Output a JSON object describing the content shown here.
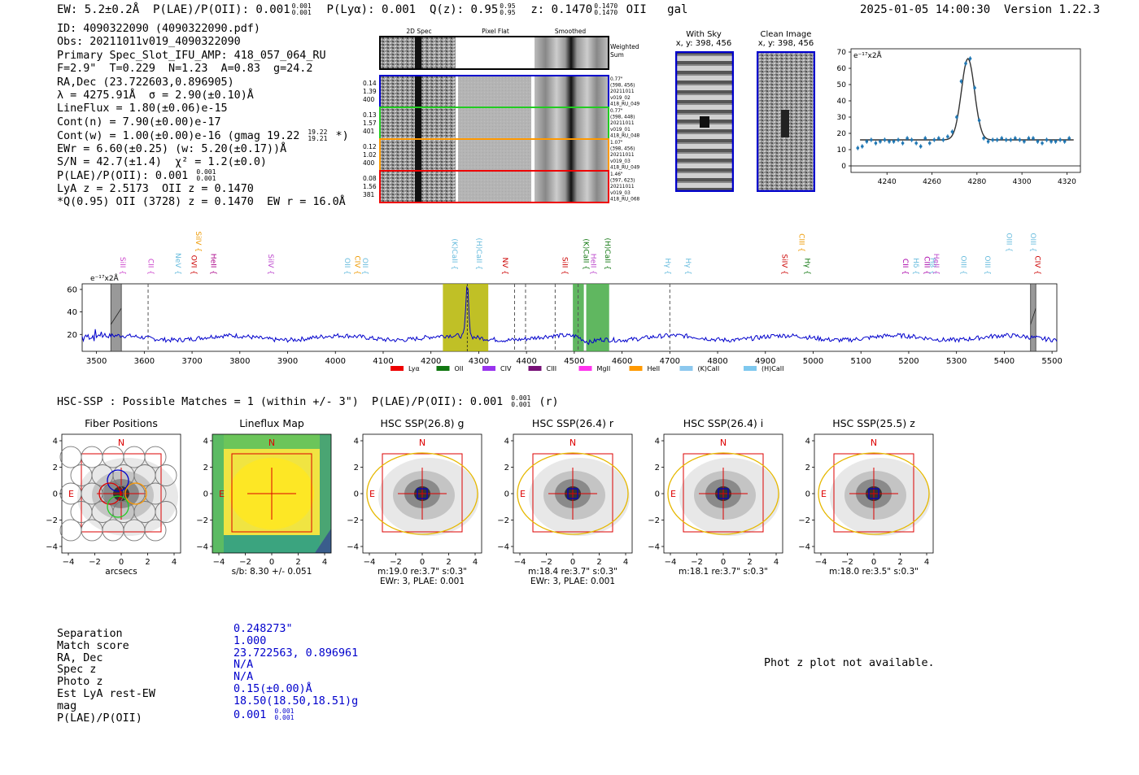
{
  "header": {
    "left": "EW: 5.2±0.2Å  P(LAE)/P(OII): 0.001",
    "plae_sup": "0.001",
    "plae_sub": "0.001",
    "plya": "  P(Lyα): 0.001  Q(z): 0.95",
    "qz_sup": "0.95",
    "qz_sub": "0.95",
    "z": "  z: 0.1470",
    "z_sup": "0.1470",
    "z_sub": "0.1470",
    "tail": " OII   gal",
    "timestamp": "2025-01-05 14:00:30",
    "version": "Version 1.22.3"
  },
  "info_lines": [
    "ID: 4090322090 (4090322090.pdf)",
    "Obs: 20211011v019_4090322090",
    "Primary Spec_Slot_IFU_AMP: 418_057_064_RU",
    "F=2.9\"  T=0.229  N=1.23  A=0.83  g=24.2",
    "RA,Dec (23.722603,0.896905)",
    "λ = 4275.91Å  σ = 2.90(±0.10)Å",
    "LineFlux = 1.80(±0.06)e-15",
    "Cont(n) = 7.90(±0.00)e-17",
    "Cont(w) = 1.00(±0.00)e-16 (gmag 19.22",
    "EWr = 6.60(±0.25) (w: 5.20(±0.17))Å",
    "S/N = 42.7(±1.4)  χ² = 1.2(±0.0)",
    "P(LAE)/P(OII): 0.001",
    "LyA z = 2.5173  OII z = 0.1470",
    "*Q(0.95) OII (3728) z = 0.1470  EW r = 16.0Å"
  ],
  "info_fracs": {
    "gmag_sup": "19.22",
    "gmag_sub": "19.21",
    "gmag_tail": " *)",
    "plae_sup": "0.001",
    "plae_sub": "0.001"
  },
  "cutouts": {
    "col_titles": [
      "2D Spec",
      "Pixel Flat",
      "Smoothed"
    ],
    "weighted_sum": "Weighted\nSum",
    "rows": [
      {
        "left": [
          "0.14",
          "1.39",
          "400"
        ],
        "right": [
          "0.77\"",
          "(398, 456)",
          "20211011",
          "v019_02",
          "418_RU_049"
        ],
        "color": "#0000cc"
      },
      {
        "left": [
          "0.13",
          "1.57",
          "401"
        ],
        "right": [
          "0.77\"",
          "(398, 448)",
          "20211011",
          "v019_01",
          "418_RU_048"
        ],
        "color": "#22cc22"
      },
      {
        "left": [
          "0.12",
          "1.02",
          "400"
        ],
        "right": [
          "1.07\"",
          "(398, 456)",
          "20211011",
          "v019_03",
          "418_RU_049"
        ],
        "color": "#ff9900"
      },
      {
        "left": [
          "0.08",
          "1.56",
          "381"
        ],
        "right": [
          "1.46\"",
          "(397, 623)",
          "20211011",
          "v019_03",
          "418_RU_068"
        ],
        "color": "#ee0000"
      }
    ]
  },
  "sky_panels": {
    "with_sky_title": "With Sky",
    "with_sky_xy": "x, y: 398, 456",
    "clean_title": "Clean Image",
    "clean_xy": "x, y: 398, 456"
  },
  "zoom_chart": {
    "unit_label": "e⁻¹⁷x2Å",
    "xticks": [
      "4240",
      "4260",
      "4280",
      "4300",
      "4320"
    ],
    "yticks": [
      "0",
      "10",
      "20",
      "30",
      "40",
      "50",
      "60",
      "70"
    ]
  },
  "chart_data": [
    {
      "type": "scatter",
      "title": "line fit zoom",
      "xlim": [
        4224,
        4326
      ],
      "ylim": [
        -4,
        72
      ],
      "x": [
        4227,
        4229,
        4231,
        4233,
        4235,
        4237,
        4239,
        4241,
        4243,
        4245,
        4247,
        4249,
        4251,
        4253,
        4255,
        4257,
        4259,
        4261,
        4263,
        4265,
        4267,
        4269,
        4271,
        4273,
        4275,
        4277,
        4279,
        4281,
        4283,
        4285,
        4287,
        4289,
        4291,
        4293,
        4295,
        4297,
        4299,
        4301,
        4303,
        4305,
        4307,
        4309,
        4311,
        4313,
        4315,
        4317,
        4319,
        4321
      ],
      "y": [
        11,
        12,
        15,
        16,
        14,
        15,
        16,
        15,
        15,
        16,
        14,
        17,
        16,
        14,
        12,
        17,
        14,
        16,
        17,
        16,
        18,
        21,
        30,
        52,
        63,
        66,
        48,
        28,
        17,
        15,
        16,
        16,
        17,
        16,
        16,
        17,
        16,
        15,
        17,
        17,
        15,
        14,
        16,
        15,
        15,
        16,
        15,
        17
      ],
      "fit_peak": 66,
      "fit_center": 4276,
      "fit_sigma": 2.9,
      "fit_baseline": 16
    },
    {
      "type": "line",
      "title": "full spectrum",
      "unit_label": "e⁻¹⁷x2Å",
      "xlim": [
        3470,
        5510
      ],
      "ylim": [
        5,
        65
      ],
      "xticks": [
        "3500",
        "3600",
        "3700",
        "3800",
        "3900",
        "4000",
        "4100",
        "4200",
        "4300",
        "4400",
        "4500",
        "4600",
        "4700",
        "4800",
        "4900",
        "5000",
        "5100",
        "5200",
        "5300",
        "5400",
        "5500"
      ],
      "yticks": [
        "20",
        "40",
        "60"
      ],
      "emission_line_peak": {
        "center": 4276,
        "height": 63
      },
      "line_markers": [
        {
          "label": "SiII",
          "x": 3545,
          "color": "#cc44cc",
          "tier": 0
        },
        {
          "label": "CII",
          "x": 3604,
          "color": "#cc44cc",
          "tier": 0
        },
        {
          "label": "NeV",
          "x": 3661,
          "color": "#66bbdd",
          "tier": 0
        },
        {
          "label": "OVI",
          "x": 3694,
          "color": "#cc0000",
          "tier": 0
        },
        {
          "label": "SiIV",
          "x": 3703,
          "color": "#ee9900",
          "tier": 2
        },
        {
          "label": "HeII",
          "x": 3735,
          "color": "#aa0088",
          "tier": 0
        },
        {
          "label": "SiIV",
          "x": 3855,
          "color": "#bb44cc",
          "tier": 0
        },
        {
          "label": "OII",
          "x": 4015,
          "color": "#66bbdd",
          "tier": 0
        },
        {
          "label": "CIV",
          "x": 4036,
          "color": "#ee9900",
          "tier": 0
        },
        {
          "label": "OII",
          "x": 4052,
          "color": "#66bbdd",
          "tier": 0
        },
        {
          "label": "(K)CaII",
          "x": 4240,
          "color": "#66bbdd",
          "tier": 1
        },
        {
          "label": "(H)CaII",
          "x": 4291,
          "color": "#66bbdd",
          "tier": 1
        },
        {
          "label": "NV",
          "x": 4345,
          "color": "#cc0000",
          "tier": 0
        },
        {
          "label": "SiII",
          "x": 4470,
          "color": "#cc0000",
          "tier": 0
        },
        {
          "label": "(K)CaII",
          "x": 4515,
          "color": "#117711",
          "tier": 1
        },
        {
          "label": "HeII",
          "x": 4530,
          "color": "#bb44cc",
          "tier": 0
        },
        {
          "label": "(H)CaII",
          "x": 4560,
          "color": "#117711",
          "tier": 1
        },
        {
          "label": "Hγ",
          "x": 4686,
          "color": "#66bbdd",
          "tier": 0
        },
        {
          "label": "Hγ",
          "x": 4728,
          "color": "#66bbdd",
          "tier": 0
        },
        {
          "label": "SiIV",
          "x": 4930,
          "color": "#cc0000",
          "tier": 0
        },
        {
          "label": "CIII",
          "x": 4966,
          "color": "#ee9900",
          "tier": 2
        },
        {
          "label": "Hγ",
          "x": 4978,
          "color": "#117711",
          "tier": 0
        },
        {
          "label": "CII",
          "x": 5183,
          "color": "#aa00aa",
          "tier": 0
        },
        {
          "label": "Hδ",
          "x": 5205,
          "color": "#66bbdd",
          "tier": 0
        },
        {
          "label": "CIII",
          "x": 5228,
          "color": "#aa00aa",
          "tier": 0
        },
        {
          "label": "Hβ",
          "x": 5240,
          "color": "#66bbdd",
          "tier": 0
        },
        {
          "label": "HeII",
          "x": 5248,
          "color": "#bb44cc",
          "tier": 0
        },
        {
          "label": "OIII",
          "x": 5305,
          "color": "#66bbdd",
          "tier": 0
        },
        {
          "label": "OIII",
          "x": 5355,
          "color": "#66bbdd",
          "tier": 0
        },
        {
          "label": "OIII",
          "x": 5400,
          "color": "#66bbdd",
          "tier": 2
        },
        {
          "label": "OIII",
          "x": 5450,
          "color": "#66bbdd",
          "tier": 2
        },
        {
          "label": "CIV",
          "x": 5460,
          "color": "#cc0000",
          "tier": 0
        }
      ],
      "dashed_lines": [
        3608,
        4375,
        4398,
        4460,
        4508,
        4700
      ],
      "shaded_bands": [
        {
          "from": 4225,
          "to": 4320,
          "color": "#b5b500"
        },
        {
          "from": 4497,
          "to": 4520,
          "color": "#44aa44"
        },
        {
          "from": 4525,
          "to": 4573,
          "color": "#44aa44"
        }
      ],
      "hatched_bands": [
        {
          "from": 3530,
          "to": 3552
        },
        {
          "from": 5455,
          "to": 5466
        }
      ],
      "legend": [
        {
          "label": "Lyα",
          "color": "#ee0000"
        },
        {
          "label": "OII",
          "color": "#117711"
        },
        {
          "label": "CIV",
          "color": "#9933ee"
        },
        {
          "label": "CIII",
          "color": "#771177"
        },
        {
          "label": "MgII",
          "color": "#ff33ee"
        },
        {
          "label": "HeII",
          "color": "#ff9900"
        },
        {
          "label": "(K)CaII",
          "color": "#8cc8ee"
        },
        {
          "label": "(H)CaII",
          "color": "#7ec8ee"
        }
      ]
    }
  ],
  "hsc_header": {
    "text": "HSC-SSP : Possible Matches = 1 (within +/- 3\")  P(LAE)/P(OII): 0.001",
    "sup": "0.001",
    "sub": "0.001",
    "tail": " (r)"
  },
  "stamps": [
    {
      "title": "Fiber Positions",
      "captions": [
        "arcsecs"
      ]
    },
    {
      "title": "Lineflux Map",
      "captions": [
        "s/b: 8.30 +/- 0.051"
      ]
    },
    {
      "title": "HSC SSP(26.8) g",
      "captions": [
        "m:19.0  re:3.7\"  s:0.3\"",
        "EWr: 3, PLAE: 0.001"
      ]
    },
    {
      "title": "HSC SSP(26.4) r",
      "captions": [
        "m:18.4  re:3.7\"  s:0.3\"",
        "EWr: 3, PLAE: 0.001"
      ]
    },
    {
      "title": "HSC SSP(26.4) i",
      "captions": [
        "m:18.1  re:3.7\"  s:0.3\""
      ]
    },
    {
      "title": "HSC SSP(25.5) z",
      "captions": [
        "m:18.0  re:3.5\"  s:0.3\""
      ]
    }
  ],
  "stamp_axes": {
    "ticks": [
      "−4",
      "−2",
      "0",
      "2",
      "4"
    ],
    "north": "N",
    "east": "E"
  },
  "match_table": {
    "labels": [
      "Separation",
      "Match score",
      "RA, Dec",
      "Spec z",
      "Photo z",
      "Est LyA rest-EW",
      "mag",
      "P(LAE)/P(OII)"
    ],
    "values": [
      "0.248273\"",
      "1.000",
      "23.722563, 0.896961",
      "N/A",
      "N/A",
      "0.15(±0.00)Å",
      "18.50(18.50,18.51)g",
      "0.001"
    ],
    "plae_sup": "0.001",
    "plae_sub": "0.001"
  },
  "photz_note": "Phot z plot not available."
}
